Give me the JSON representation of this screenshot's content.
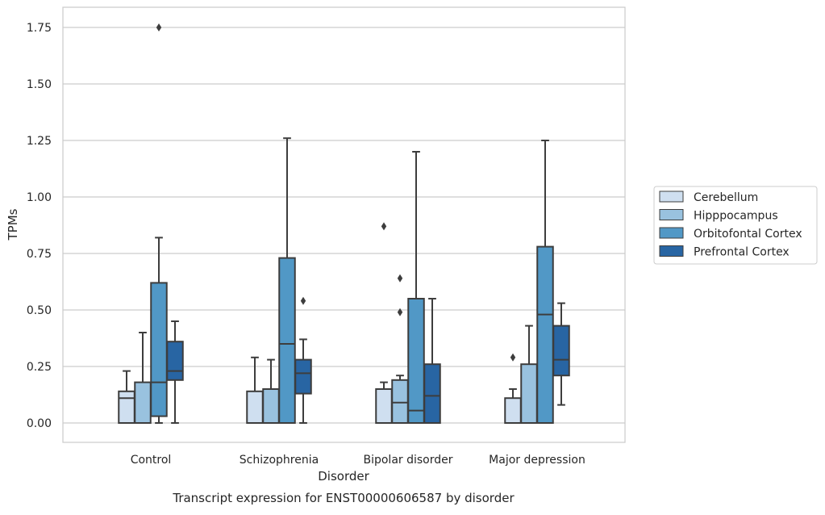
{
  "chart_data": {
    "type": "box",
    "title": "Transcript expression for ENST00000606587 by disorder",
    "xlabel": "Disorder",
    "ylabel": "TPMs",
    "ylim": [
      -0.08,
      1.84
    ],
    "yticks": [
      0.0,
      0.25,
      0.5,
      0.75,
      1.0,
      1.25,
      1.5,
      1.75
    ],
    "ytick_labels": [
      "0.00",
      "0.25",
      "0.50",
      "0.75",
      "1.00",
      "1.25",
      "1.50",
      "1.75"
    ],
    "grid": "y",
    "legend_position": "right",
    "categories": [
      "Control",
      "Schizophrenia",
      "Bipolar disorder",
      "Major depression"
    ],
    "series": [
      {
        "name": "Cerebellum",
        "color": "#cfdff0",
        "boxes": [
          {
            "whislo": 0.0,
            "q1": 0.0,
            "med": 0.11,
            "q3": 0.14,
            "whishi": 0.23,
            "fliers": []
          },
          {
            "whislo": 0.0,
            "q1": 0.0,
            "med": 0.0,
            "q3": 0.14,
            "whishi": 0.29,
            "fliers": []
          },
          {
            "whislo": 0.0,
            "q1": 0.0,
            "med": 0.0,
            "q3": 0.15,
            "whishi": 0.18,
            "fliers": [
              0.87
            ]
          },
          {
            "whislo": 0.0,
            "q1": 0.0,
            "med": 0.0,
            "q3": 0.11,
            "whishi": 0.15,
            "fliers": [
              0.29
            ]
          }
        ]
      },
      {
        "name": "Hipppocampus",
        "color": "#99c2df",
        "boxes": [
          {
            "whislo": 0.0,
            "q1": 0.0,
            "med": 0.0,
            "q3": 0.18,
            "whishi": 0.4,
            "fliers": []
          },
          {
            "whislo": 0.0,
            "q1": 0.0,
            "med": 0.0,
            "q3": 0.15,
            "whishi": 0.28,
            "fliers": []
          },
          {
            "whislo": 0.0,
            "q1": 0.0,
            "med": 0.09,
            "q3": 0.19,
            "whishi": 0.21,
            "fliers": [
              0.64,
              0.49
            ]
          },
          {
            "whislo": 0.0,
            "q1": 0.0,
            "med": 0.0,
            "q3": 0.26,
            "whishi": 0.43,
            "fliers": []
          }
        ]
      },
      {
        "name": "Orbitofontal Cortex",
        "color": "#5198c6",
        "boxes": [
          {
            "whislo": 0.0,
            "q1": 0.03,
            "med": 0.18,
            "q3": 0.62,
            "whishi": 0.82,
            "fliers": [
              1.75
            ]
          },
          {
            "whislo": 0.0,
            "q1": 0.0,
            "med": 0.35,
            "q3": 0.73,
            "whishi": 1.26,
            "fliers": []
          },
          {
            "whislo": 0.0,
            "q1": 0.0,
            "med": 0.055,
            "q3": 0.55,
            "whishi": 1.2,
            "fliers": []
          },
          {
            "whislo": 0.0,
            "q1": 0.0,
            "med": 0.48,
            "q3": 0.78,
            "whishi": 1.25,
            "fliers": []
          }
        ]
      },
      {
        "name": "Prefrontal Cortex",
        "color": "#2865a3",
        "boxes": [
          {
            "whislo": 0.0,
            "q1": 0.19,
            "med": 0.23,
            "q3": 0.36,
            "whishi": 0.45,
            "fliers": []
          },
          {
            "whislo": 0.0,
            "q1": 0.13,
            "med": 0.22,
            "q3": 0.28,
            "whishi": 0.37,
            "fliers": [
              0.54
            ]
          },
          {
            "whislo": 0.0,
            "q1": 0.0,
            "med": 0.12,
            "q3": 0.26,
            "whishi": 0.55,
            "fliers": []
          },
          {
            "whislo": 0.08,
            "q1": 0.21,
            "med": 0.28,
            "q3": 0.43,
            "whishi": 0.53,
            "fliers": []
          }
        ]
      }
    ]
  }
}
